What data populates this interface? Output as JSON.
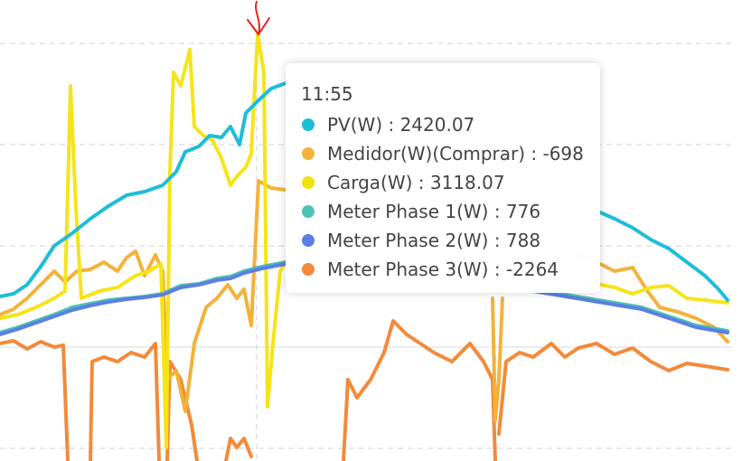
{
  "tooltip": {
    "time": "11:55",
    "items": [
      {
        "label": "PV(W) : 2420.07",
        "color": "#1ebdd9"
      },
      {
        "label": "Medidor(W)(Comprar) : -698",
        "color": "#f3b23a"
      },
      {
        "label": "Carga(W) : 3118.07",
        "color": "#f0e20f"
      },
      {
        "label": "Meter Phase 1(W) : 776",
        "color": "#4cc3b5"
      },
      {
        "label": "Meter Phase 2(W) : 788",
        "color": "#5b7fe3"
      },
      {
        "label": "Meter Phase 3(W) : -2264",
        "color": "#f28a3a"
      }
    ]
  }
}
